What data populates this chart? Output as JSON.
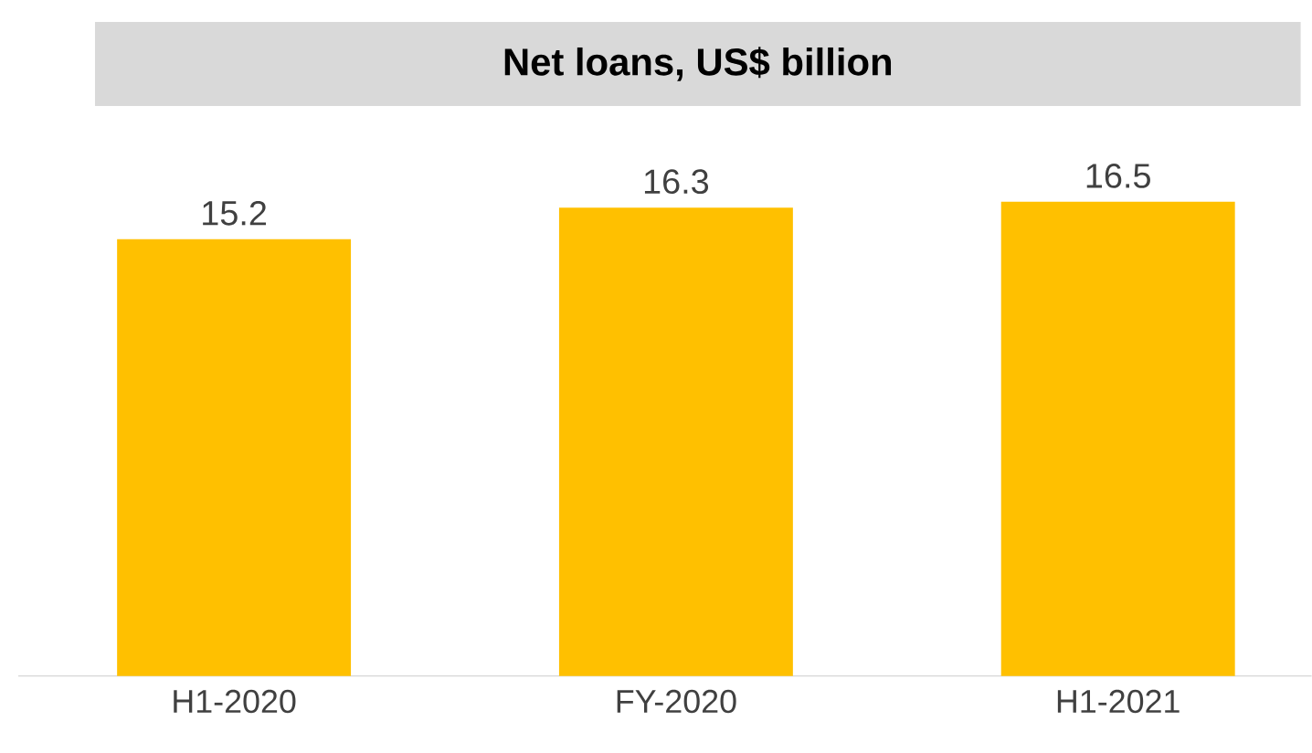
{
  "chart_data": {
    "type": "bar",
    "title": "Net loans, US$ billion",
    "categories": [
      "H1-2020",
      "FY-2020",
      "H1-2021"
    ],
    "values": [
      15.2,
      16.3,
      16.5
    ],
    "color": "#ffc000",
    "tick_labels": "x",
    "data_labels": true
  }
}
